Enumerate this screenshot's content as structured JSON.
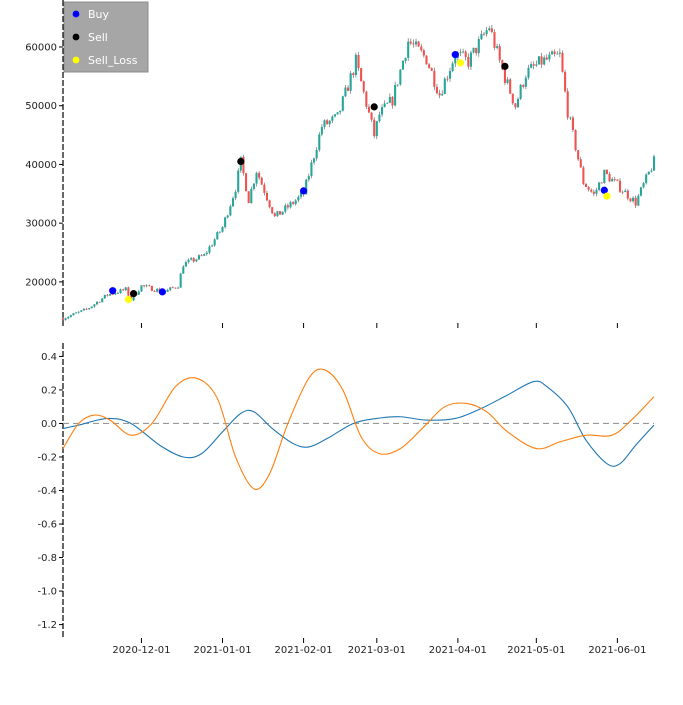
{
  "chart_data": [
    {
      "type": "candlestick",
      "name_hint": "price",
      "ylim": [
        13000,
        68000
      ],
      "yticks": [
        20000,
        30000,
        40000,
        50000,
        60000
      ],
      "ytick_labels": [
        "20000",
        "30000",
        "40000",
        "50000",
        "60000"
      ],
      "xlim": [
        "2020-11-01",
        "2021-06-15"
      ],
      "candle_colors": {
        "up": "#26a69a",
        "down": "#ef5350"
      },
      "close_path": [
        [
          "2020-11-01",
          13800
        ],
        [
          "2020-11-10",
          15300
        ],
        [
          "2020-11-18",
          17800
        ],
        [
          "2020-11-25",
          18700
        ],
        [
          "2020-11-27",
          17000
        ],
        [
          "2020-12-01",
          19300
        ],
        [
          "2020-12-10",
          18300
        ],
        [
          "2020-12-15",
          19400
        ],
        [
          "2020-12-17",
          23000
        ],
        [
          "2020-12-25",
          24500
        ],
        [
          "2021-01-01",
          29300
        ],
        [
          "2021-01-06",
          36000
        ],
        [
          "2021-01-08",
          40500
        ],
        [
          "2021-01-11",
          34000
        ],
        [
          "2021-01-14",
          39000
        ],
        [
          "2021-01-21",
          31000
        ],
        [
          "2021-01-28",
          33500
        ],
        [
          "2021-02-01",
          35000
        ],
        [
          "2021-02-08",
          46500
        ],
        [
          "2021-02-14",
          48000
        ],
        [
          "2021-02-21",
          57500
        ],
        [
          "2021-02-28",
          45000
        ],
        [
          "2021-03-02",
          48500
        ],
        [
          "2021-03-07",
          51000
        ],
        [
          "2021-03-13",
          61000
        ],
        [
          "2021-03-20",
          58000
        ],
        [
          "2021-03-25",
          52000
        ],
        [
          "2021-03-31",
          58800
        ],
        [
          "2021-04-05",
          57500
        ],
        [
          "2021-04-13",
          63500
        ],
        [
          "2021-04-18",
          56000
        ],
        [
          "2021-04-23",
          50000
        ],
        [
          "2021-04-27",
          55500
        ],
        [
          "2021-05-03",
          57500
        ],
        [
          "2021-05-10",
          58500
        ],
        [
          "2021-05-13",
          49000
        ],
        [
          "2021-05-19",
          37000
        ],
        [
          "2021-05-23",
          34800
        ],
        [
          "2021-05-27",
          38500
        ],
        [
          "2021-06-01",
          36500
        ],
        [
          "2021-06-08",
          33500
        ],
        [
          "2021-06-15",
          40500
        ]
      ],
      "markers": [
        {
          "type": "Buy",
          "date": "2020-11-20",
          "price": 18500
        },
        {
          "type": "Sell_Loss",
          "date": "2020-11-26",
          "price": 17000
        },
        {
          "type": "Sell",
          "date": "2020-11-28",
          "price": 18000
        },
        {
          "type": "Buy",
          "date": "2020-12-09",
          "price": 18300
        },
        {
          "type": "Sell",
          "date": "2021-01-08",
          "price": 40500
        },
        {
          "type": "Buy",
          "date": "2021-02-01",
          "price": 35500
        },
        {
          "type": "Sell",
          "date": "2021-02-28",
          "price": 49800
        },
        {
          "type": "Buy",
          "date": "2021-03-31",
          "price": 58700
        },
        {
          "type": "Sell_Loss",
          "date": "2021-04-02",
          "price": 57300
        },
        {
          "type": "Sell",
          "date": "2021-04-19",
          "price": 56700
        },
        {
          "type": "Buy",
          "date": "2021-05-27",
          "price": 35600
        },
        {
          "type": "Sell_Loss",
          "date": "2021-05-28",
          "price": 34600
        }
      ],
      "legend": {
        "placement": "top-left",
        "entries": [
          {
            "label": "Buy",
            "color": "#0000ff"
          },
          {
            "label": "Sell",
            "color": "#000000"
          },
          {
            "label": "Sell_Loss",
            "color": "#ffff00"
          }
        ]
      }
    },
    {
      "type": "line",
      "name_hint": "oscillator",
      "ylim": [
        -1.28,
        0.48
      ],
      "yticks": [
        0.4,
        0.2,
        0.0,
        -0.2,
        -0.4,
        -0.6,
        -0.8,
        -1.0,
        -1.2
      ],
      "ytick_labels": [
        "0.4",
        "0.2",
        "0.0",
        "-0.2",
        "-0.4",
        "-0.6",
        "-0.8",
        "-1.0",
        "-1.2"
      ],
      "xlim": [
        "2020-11-01",
        "2021-06-15"
      ],
      "xticks": [
        "2020-12-01",
        "2021-01-01",
        "2021-02-01",
        "2021-03-01",
        "2021-04-01",
        "2021-05-01",
        "2021-06-01"
      ],
      "xtick_labels": [
        "2020-12-01",
        "2021-01-01",
        "2021-02-01",
        "2021-03-01",
        "2021-04-01",
        "2021-05-01",
        "2021-06-01"
      ],
      "zero_line": {
        "value": 0,
        "style": "dashed",
        "color": "#999999"
      },
      "series": [
        {
          "color": "#1f77b4",
          "points": [
            [
              "2020-11-01",
              -0.03
            ],
            [
              "2020-11-07",
              -0.01
            ],
            [
              "2020-11-18",
              0.03
            ],
            [
              "2020-11-27",
              0.0
            ],
            [
              "2020-12-08",
              -0.13
            ],
            [
              "2020-12-17",
              -0.2
            ],
            [
              "2020-12-24",
              -0.18
            ],
            [
              "2021-01-01",
              -0.05
            ],
            [
              "2021-01-08",
              0.06
            ],
            [
              "2021-01-13",
              0.07
            ],
            [
              "2021-01-20",
              -0.03
            ],
            [
              "2021-01-28",
              -0.12
            ],
            [
              "2021-02-03",
              -0.14
            ],
            [
              "2021-02-10",
              -0.09
            ],
            [
              "2021-02-20",
              0.0
            ],
            [
              "2021-03-01",
              0.03
            ],
            [
              "2021-03-10",
              0.04
            ],
            [
              "2021-03-20",
              0.02
            ],
            [
              "2021-03-31",
              0.03
            ],
            [
              "2021-04-10",
              0.09
            ],
            [
              "2021-04-20",
              0.17
            ],
            [
              "2021-04-30",
              0.25
            ],
            [
              "2021-05-05",
              0.22
            ],
            [
              "2021-05-13",
              0.1
            ],
            [
              "2021-05-20",
              -0.1
            ],
            [
              "2021-05-28",
              -0.24
            ],
            [
              "2021-06-02",
              -0.24
            ],
            [
              "2021-06-08",
              -0.13
            ],
            [
              "2021-06-15",
              -0.01
            ]
          ]
        },
        {
          "color": "#ff7f0e",
          "points": [
            [
              "2020-11-01",
              -0.15
            ],
            [
              "2020-11-07",
              0.0
            ],
            [
              "2020-11-13",
              0.05
            ],
            [
              "2020-11-19",
              0.02
            ],
            [
              "2020-11-27",
              -0.07
            ],
            [
              "2020-12-05",
              0.0
            ],
            [
              "2020-12-14",
              0.22
            ],
            [
              "2020-12-22",
              0.27
            ],
            [
              "2020-12-30",
              0.15
            ],
            [
              "2021-01-06",
              -0.2
            ],
            [
              "2021-01-13",
              -0.39
            ],
            [
              "2021-01-19",
              -0.3
            ],
            [
              "2021-01-26",
              0.0
            ],
            [
              "2021-02-03",
              0.27
            ],
            [
              "2021-02-09",
              0.32
            ],
            [
              "2021-02-16",
              0.2
            ],
            [
              "2021-02-23",
              -0.08
            ],
            [
              "2021-03-02",
              -0.18
            ],
            [
              "2021-03-10",
              -0.15
            ],
            [
              "2021-03-19",
              -0.02
            ],
            [
              "2021-03-27",
              0.1
            ],
            [
              "2021-04-04",
              0.12
            ],
            [
              "2021-04-12",
              0.07
            ],
            [
              "2021-04-20",
              -0.05
            ],
            [
              "2021-05-01",
              -0.15
            ],
            [
              "2021-05-10",
              -0.11
            ],
            [
              "2021-05-20",
              -0.07
            ],
            [
              "2021-05-30",
              -0.07
            ],
            [
              "2021-06-07",
              0.03
            ],
            [
              "2021-06-15",
              0.16
            ]
          ]
        }
      ]
    }
  ]
}
